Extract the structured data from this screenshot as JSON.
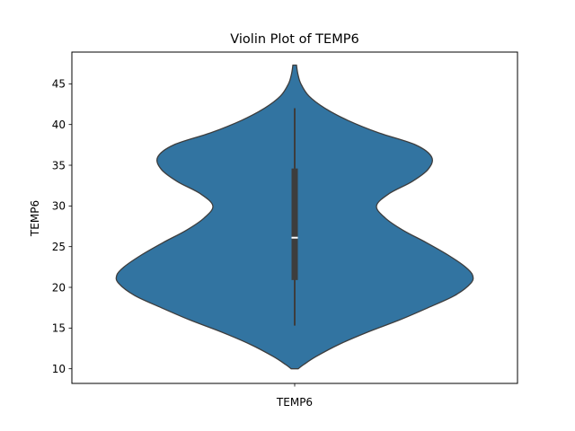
{
  "chart_data": {
    "type": "violin",
    "title": "Violin Plot of TEMP6",
    "xlabel": "",
    "ylabel": "TEMP6",
    "categories": [
      "TEMP6"
    ],
    "ylim": [
      8.2,
      48.9
    ],
    "yticks": [
      10,
      15,
      20,
      25,
      30,
      35,
      40,
      45
    ],
    "grid": false,
    "violin_extent": [
      10.0,
      47.3
    ],
    "density_profile": [
      {
        "y": 10.0,
        "w": 0.02
      },
      {
        "y": 10.5,
        "w": 0.05
      },
      {
        "y": 11.5,
        "w": 0.12
      },
      {
        "y": 13.0,
        "w": 0.25
      },
      {
        "y": 14.5,
        "w": 0.41
      },
      {
        "y": 16.0,
        "w": 0.59
      },
      {
        "y": 17.5,
        "w": 0.75
      },
      {
        "y": 19.0,
        "w": 0.9
      },
      {
        "y": 20.5,
        "w": 0.99
      },
      {
        "y": 21.5,
        "w": 1.0
      },
      {
        "y": 22.5,
        "w": 0.96
      },
      {
        "y": 24.0,
        "w": 0.86
      },
      {
        "y": 25.5,
        "w": 0.74
      },
      {
        "y": 27.0,
        "w": 0.61
      },
      {
        "y": 28.5,
        "w": 0.51
      },
      {
        "y": 30.0,
        "w": 0.46
      },
      {
        "y": 31.5,
        "w": 0.53
      },
      {
        "y": 33.0,
        "w": 0.66
      },
      {
        "y": 34.5,
        "w": 0.75
      },
      {
        "y": 36.0,
        "w": 0.77
      },
      {
        "y": 37.5,
        "w": 0.68
      },
      {
        "y": 39.0,
        "w": 0.47
      },
      {
        "y": 40.5,
        "w": 0.3
      },
      {
        "y": 42.0,
        "w": 0.17
      },
      {
        "y": 43.5,
        "w": 0.08
      },
      {
        "y": 45.0,
        "w": 0.035
      },
      {
        "y": 46.2,
        "w": 0.018
      },
      {
        "y": 47.3,
        "w": 0.01
      }
    ],
    "box": {
      "whisker_low": 15.3,
      "q1": 20.9,
      "median": 26.1,
      "q3": 34.6,
      "whisker_high": 42.0
    },
    "colors": {
      "violin_fill": "#3274a1",
      "violin_edge": "#3d3d3d",
      "box": "#3d3d3d",
      "median": "#ffffff"
    }
  }
}
